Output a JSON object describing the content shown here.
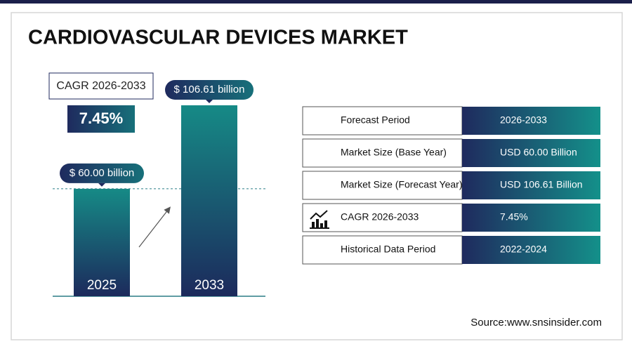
{
  "title": "CARDIOVASCULAR DEVICES MARKET",
  "cagr": {
    "label": "CAGR 2026-2033",
    "value": "7.45%"
  },
  "chart_data": {
    "type": "bar",
    "categories": [
      "2025",
      "2033"
    ],
    "values": [
      60.0,
      106.61
    ],
    "value_labels": [
      "$ 60.00 billion",
      "$ 106.61 billion"
    ]
  },
  "table": {
    "rows": [
      [
        "Forecast Period",
        "2026-2033"
      ],
      [
        "Market Size (Base Year)",
        "USD 60.00 Billion"
      ],
      [
        "Market Size (Forecast Year)",
        "USD 106.61 Billion"
      ],
      [
        "CAGR 2026-2033",
        "7.45%"
      ],
      [
        "Historical Data Period",
        "2022-2024"
      ]
    ]
  },
  "source": "Source:www.snsinsider.com"
}
